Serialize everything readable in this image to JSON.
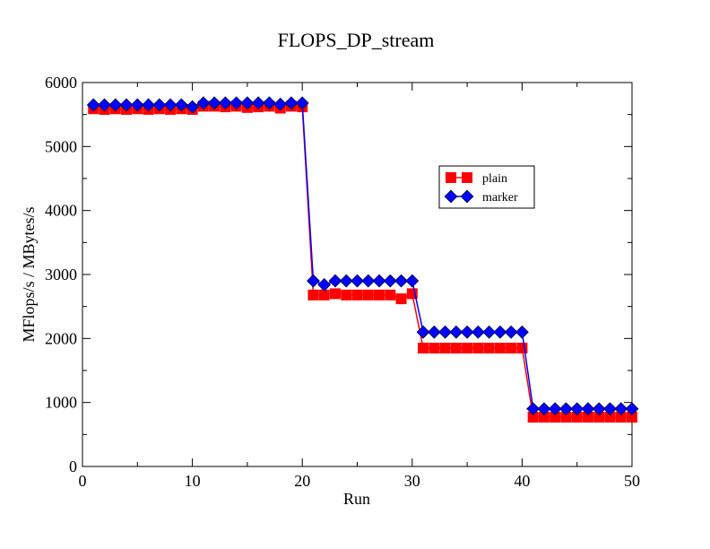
{
  "chart_data": {
    "type": "line",
    "title": "FLOPS_DP_stream",
    "xlabel": "Run",
    "ylabel": "MFlops/s / MBytes/s",
    "xlim": [
      0,
      50
    ],
    "ylim": [
      0,
      6000
    ],
    "xticks": [
      0,
      10,
      20,
      30,
      40,
      50
    ],
    "yticks": [
      0,
      1000,
      2000,
      3000,
      4000,
      5000,
      6000
    ],
    "grid": false,
    "legend": "upper-right-inside",
    "x": [
      1,
      2,
      3,
      4,
      5,
      6,
      7,
      8,
      9,
      10,
      11,
      12,
      13,
      14,
      15,
      16,
      17,
      18,
      19,
      20,
      21,
      22,
      23,
      24,
      25,
      26,
      27,
      28,
      29,
      30,
      31,
      32,
      33,
      34,
      35,
      36,
      37,
      38,
      39,
      40,
      41,
      42,
      43,
      44,
      45,
      46,
      47,
      48,
      49,
      50
    ],
    "series": [
      {
        "name": "plain",
        "color": "#ff0000",
        "marker": "square",
        "values": [
          5590,
          5580,
          5590,
          5580,
          5590,
          5580,
          5590,
          5580,
          5590,
          5580,
          5630,
          5630,
          5620,
          5630,
          5610,
          5620,
          5630,
          5600,
          5630,
          5620,
          2680,
          2680,
          2700,
          2680,
          2680,
          2680,
          2680,
          2680,
          2620,
          2700,
          1850,
          1850,
          1850,
          1850,
          1850,
          1850,
          1850,
          1850,
          1850,
          1850,
          770,
          770,
          770,
          770,
          770,
          770,
          770,
          770,
          770,
          770
        ]
      },
      {
        "name": "marker",
        "color": "#0000ff",
        "marker": "diamond",
        "values": [
          5650,
          5650,
          5650,
          5650,
          5650,
          5650,
          5650,
          5650,
          5650,
          5620,
          5680,
          5680,
          5680,
          5680,
          5680,
          5680,
          5680,
          5660,
          5680,
          5680,
          2900,
          2840,
          2900,
          2900,
          2900,
          2900,
          2900,
          2900,
          2900,
          2900,
          2100,
          2100,
          2100,
          2100,
          2100,
          2100,
          2100,
          2100,
          2100,
          2100,
          900,
          900,
          900,
          900,
          900,
          900,
          900,
          900,
          900,
          900
        ]
      }
    ]
  }
}
